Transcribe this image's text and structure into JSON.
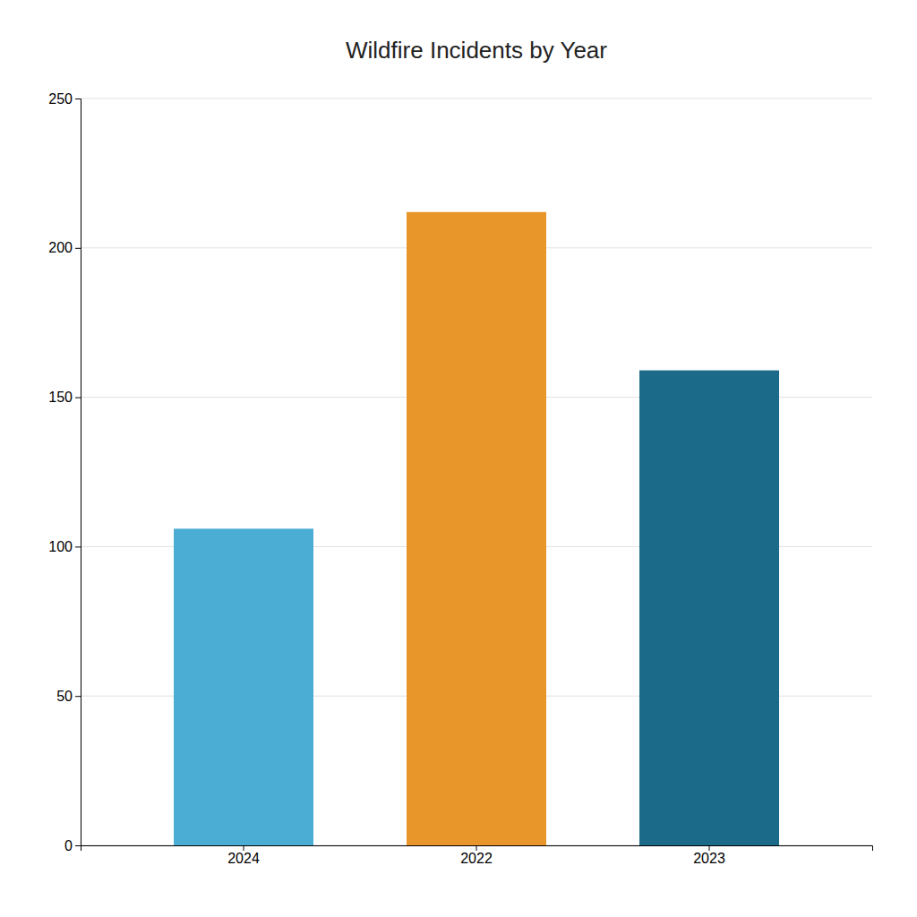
{
  "chart_data": {
    "type": "bar",
    "title": "Wildfire Incidents by Year",
    "categories": [
      "2024",
      "2022",
      "2023"
    ],
    "values": [
      106,
      212,
      159
    ],
    "colors": [
      "#4BADD4",
      "#E8962A",
      "#1B6A8A"
    ],
    "ylim": [
      0,
      250
    ],
    "yticks": [
      0,
      50,
      100,
      150,
      200,
      250
    ],
    "grid": true
  }
}
